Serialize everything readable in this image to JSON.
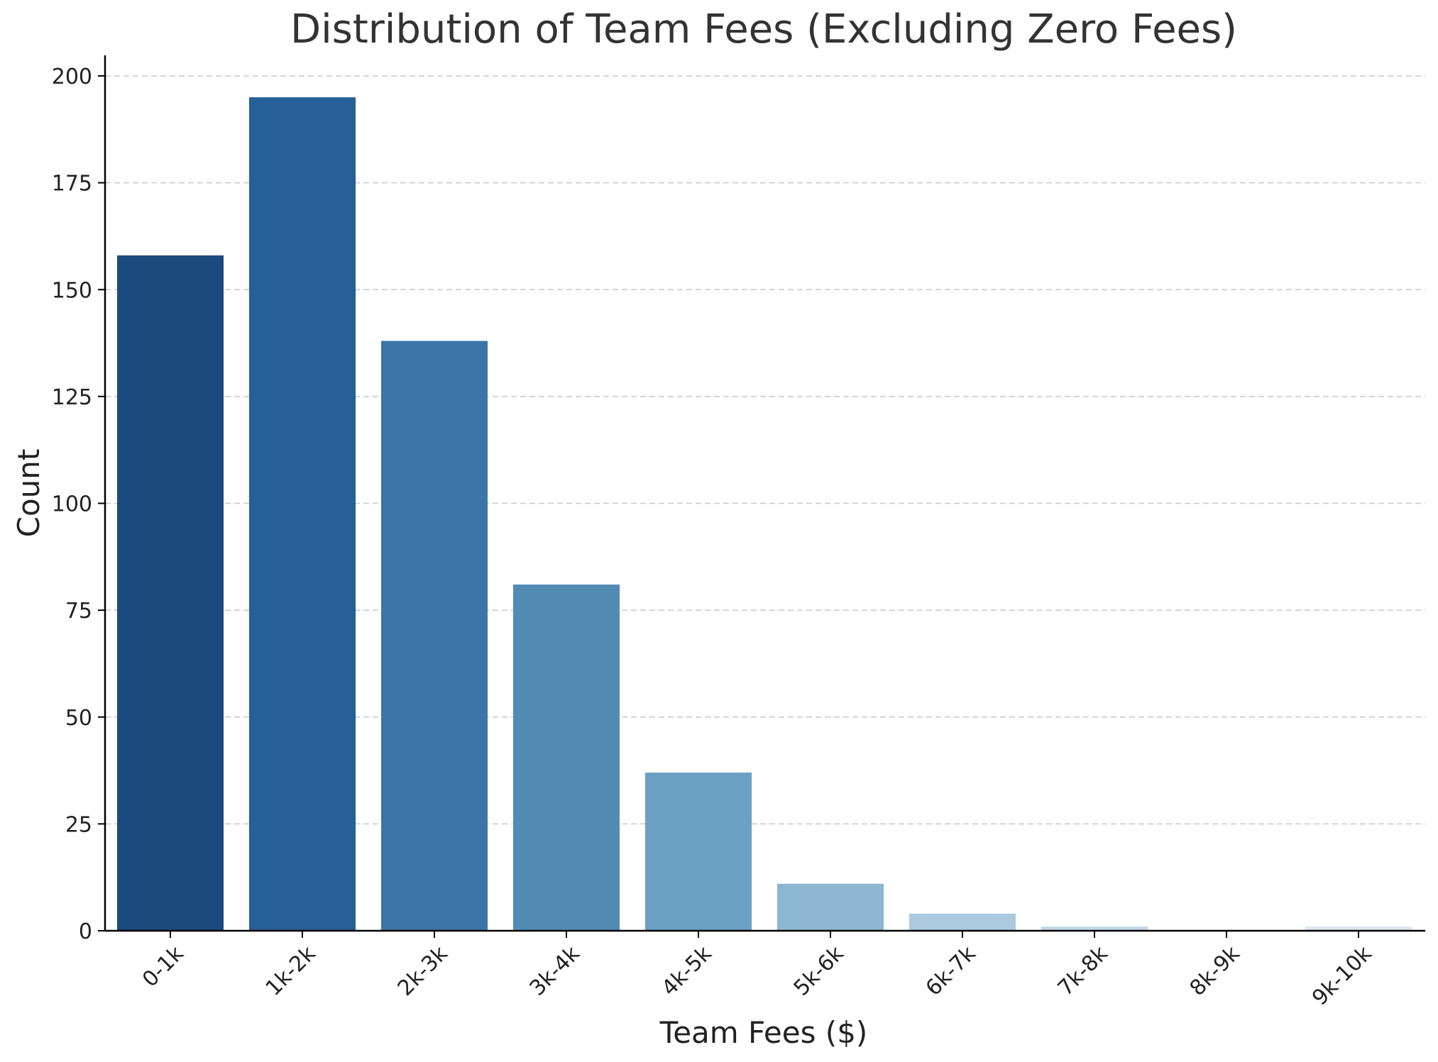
{
  "chart_data": {
    "type": "bar",
    "title": "Distribution of Team Fees (Excluding Zero Fees)",
    "xlabel": "Team Fees ($)",
    "ylabel": "Count",
    "categories": [
      "0-1k",
      "1k-2k",
      "2k-3k",
      "3k-4k",
      "4k-5k",
      "5k-6k",
      "6k-7k",
      "7k-8k",
      "8k-9k",
      "9k-10k"
    ],
    "values": [
      158,
      195,
      138,
      81,
      37,
      11,
      4,
      1,
      0,
      1
    ],
    "ylim": [
      0,
      205
    ],
    "yticks": [
      0,
      25,
      50,
      75,
      100,
      125,
      150,
      175,
      200
    ],
    "grid": true,
    "colors": [
      "#1b4a7e",
      "#276096",
      "#3a75a8",
      "#528cb5",
      "#6ca0c4",
      "#8cb6d2",
      "#aac9df",
      "#c3d9ea",
      "#d6e5f1",
      "#dde9f3"
    ]
  }
}
